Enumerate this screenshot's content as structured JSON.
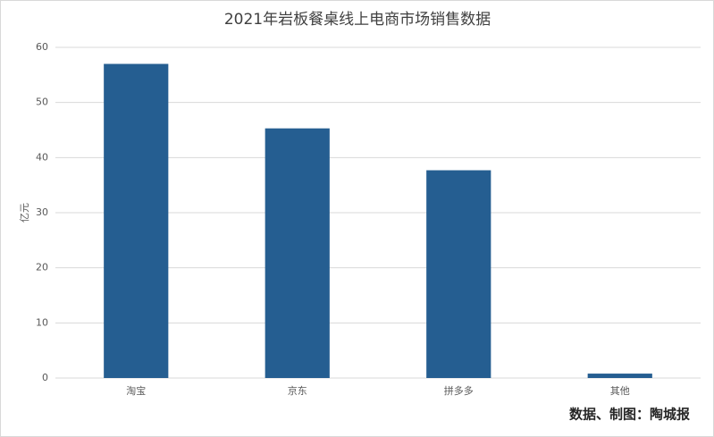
{
  "chart_data": {
    "type": "bar",
    "title": "2021年岩板餐桌线上电商市场销售数据",
    "y_label": "亿元",
    "source": "数据、制图：陶城报",
    "categories": [
      "淘宝",
      "京东",
      "拼多多",
      "其他"
    ],
    "values": [
      57,
      45.3,
      37.7,
      0.8
    ],
    "color": "#255e91",
    "ylim": [
      0,
      60
    ],
    "yticks": [
      0,
      10,
      20,
      30,
      40,
      50,
      60
    ],
    "grid": true
  }
}
